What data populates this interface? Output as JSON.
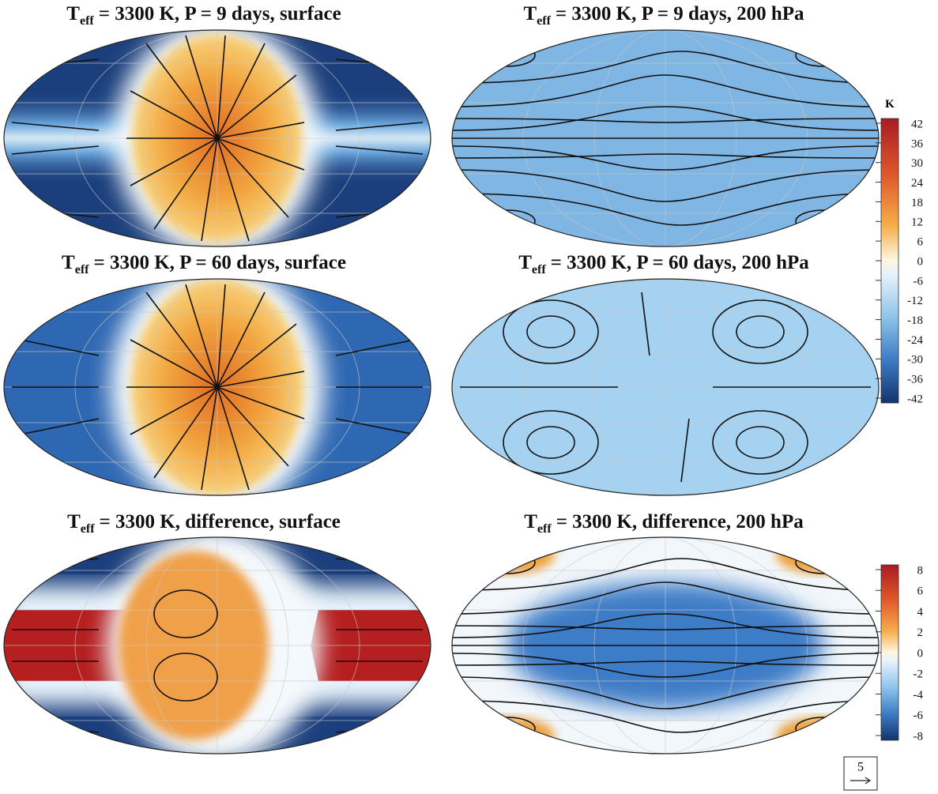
{
  "panels": [
    {
      "title": {
        "symbol": "T",
        "subscript": "eff",
        "text": "= 3300 K, P = 9 days, surface"
      }
    },
    {
      "title": {
        "symbol": "T",
        "subscript": "eff",
        "text": "= 3300 K, P = 9 days, 200 hPa"
      }
    },
    {
      "title": {
        "symbol": "T",
        "subscript": "eff",
        "text": "= 3300 K, P = 60 days, surface"
      }
    },
    {
      "title": {
        "symbol": "T",
        "subscript": "eff",
        "text": "= 3300 K, P = 60 days, 200 hPa"
      }
    },
    {
      "title": {
        "symbol": "T",
        "subscript": "eff",
        "text": "= 3300 K, difference, surface"
      }
    },
    {
      "title": {
        "symbol": "T",
        "subscript": "eff",
        "text": "= 3300 K, difference, 200 hPa"
      }
    }
  ],
  "colorbars": [
    {
      "unit": "K",
      "ticks": [
        42,
        36,
        30,
        24,
        18,
        12,
        6,
        0,
        -6,
        -12,
        -18,
        -24,
        -30,
        -36,
        -42
      ]
    },
    {
      "ticks": [
        8,
        6,
        4,
        2,
        0,
        -2,
        -4,
        -6,
        -8
      ]
    }
  ],
  "reference_arrow": {
    "label": "5"
  }
}
